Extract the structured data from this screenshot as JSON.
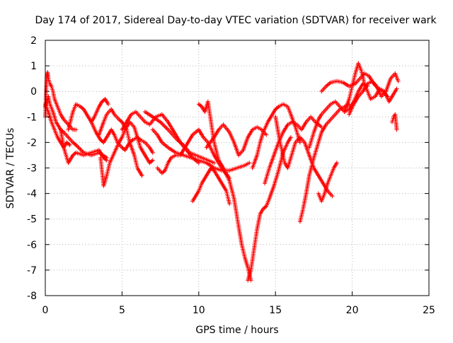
{
  "chart_data": {
    "type": "scatter",
    "title": "Day 174 of 2017, Sidereal Day-to-day VTEC variation (SDTVAR) for receiver wark",
    "xlabel": "GPS time / hours",
    "ylabel": "SDTVAR / TECUs",
    "xlim": [
      0,
      25
    ],
    "ylim": [
      -8,
      2
    ],
    "x_ticks": [
      "0",
      "5",
      "10",
      "15",
      "20",
      "25"
    ],
    "y_ticks": [
      "2",
      "1",
      "0",
      "-1",
      "-2",
      "-3",
      "-4",
      "-5",
      "-6",
      "-7",
      "-8"
    ],
    "grid": true,
    "marker": "plus",
    "color": "#ff0000",
    "series": [
      {
        "x": [
          0,
          0.2,
          0.4,
          0.6,
          0.8,
          1.0,
          1.2,
          1.4,
          1.6
        ],
        "y": [
          -0.5,
          -0.8,
          -1.2,
          -1.5,
          -1.8,
          -2.0,
          -2.2,
          -2.0,
          -2.1
        ]
      },
      {
        "x": [
          0,
          0.05,
          0.1,
          0.15,
          0.2,
          0.3,
          0.4,
          0.5,
          0.6,
          0.8,
          1.0,
          1.2,
          1.5,
          1.8,
          2.0
        ],
        "y": [
          -1.0,
          0.0,
          0.6,
          0.75,
          0.5,
          0.3,
          0.2,
          0.0,
          -0.3,
          -0.6,
          -0.9,
          -1.1,
          -1.3,
          -1.5,
          -1.5
        ]
      },
      {
        "x": [
          0,
          0.1,
          0.2,
          0.3,
          0.5,
          0.7,
          1.0,
          1.2,
          1.5,
          1.8,
          2.0,
          2.5,
          3.0,
          3.5,
          4.0
        ],
        "y": [
          -0.6,
          -0.4,
          -0.2,
          -0.5,
          -0.8,
          -1.2,
          -1.5,
          -1.6,
          -1.8,
          -2.0,
          -2.1,
          -2.4,
          -2.5,
          -2.4,
          -2.6
        ]
      },
      {
        "x": [
          1.0,
          1.2,
          1.5,
          1.8,
          2.0,
          2.5,
          3.0,
          3.5,
          3.8,
          4.0
        ],
        "y": [
          -1.5,
          -2.2,
          -2.8,
          -2.5,
          -2.4,
          -2.5,
          -2.4,
          -2.3,
          -2.6,
          -2.7
        ]
      },
      {
        "x": [
          1.5,
          1.8,
          2.0,
          2.3,
          2.5,
          3.0,
          3.2,
          3.5,
          3.7,
          3.9,
          4.1
        ],
        "y": [
          -1.5,
          -0.8,
          -0.5,
          -0.6,
          -0.7,
          -1.2,
          -1.0,
          -0.6,
          -0.4,
          -0.3,
          -0.5
        ]
      },
      {
        "x": [
          3.0,
          3.3,
          3.6,
          3.8,
          4.0,
          4.3,
          4.5,
          4.7,
          5.0,
          5.2,
          5.5,
          5.7,
          6.0,
          6.2,
          6.5,
          6.8,
          7.0
        ],
        "y": [
          -1.2,
          -1.6,
          -1.9,
          -2.0,
          -1.8,
          -1.5,
          -1.7,
          -2.0,
          -2.2,
          -2.3,
          -2.0,
          -1.9,
          -1.8,
          -1.9,
          -2.0,
          -2.2,
          -2.4
        ]
      },
      {
        "x": [
          3.6,
          3.8,
          4.0,
          4.2,
          4.5,
          4.8,
          5.0,
          5.2,
          5.5,
          5.8,
          6.0,
          6.2,
          6.5,
          6.8,
          7.0
        ],
        "y": [
          -2.6,
          -3.7,
          -3.3,
          -2.8,
          -2.4,
          -2.0,
          -1.8,
          -1.5,
          -1.2,
          -1.4,
          -1.8,
          -2.2,
          -2.5,
          -2.8,
          -2.7
        ]
      },
      {
        "x": [
          3.5,
          3.8,
          4.0,
          4.3,
          4.5,
          4.8,
          5.0,
          5.3,
          5.5,
          5.8,
          6.0,
          6.3
        ],
        "y": [
          -1.7,
          -1.2,
          -0.9,
          -0.7,
          -0.9,
          -1.1,
          -1.2,
          -1.5,
          -2.0,
          -2.5,
          -3.0,
          -3.3
        ]
      },
      {
        "x": [
          5.0,
          5.3,
          5.6,
          5.9,
          6.2,
          6.5,
          6.8,
          7.2,
          7.6,
          8.0,
          8.4,
          8.8,
          9.2,
          9.6,
          10.0
        ],
        "y": [
          -1.5,
          -1.2,
          -0.9,
          -0.8,
          -1.0,
          -1.2,
          -1.3,
          -1.0,
          -0.9,
          -1.2,
          -1.6,
          -2.0,
          -2.3,
          -2.6,
          -2.8
        ]
      },
      {
        "x": [
          6.5,
          7.0,
          7.5,
          8.0,
          8.3,
          8.6,
          9.0,
          9.4,
          9.8,
          10.2,
          10.6,
          11.0
        ],
        "y": [
          -0.8,
          -1.0,
          -1.2,
          -1.5,
          -1.7,
          -1.9,
          -2.1,
          -2.4,
          -2.5,
          -2.6,
          -2.7,
          -2.8
        ]
      },
      {
        "x": [
          7.0,
          7.3,
          7.6,
          8.0,
          8.5,
          9.0,
          9.5,
          10.0,
          10.5,
          11.0,
          11.5,
          12.0,
          12.5,
          13.0,
          13.3
        ],
        "y": [
          -1.5,
          -1.7,
          -2.0,
          -2.2,
          -2.4,
          -2.5,
          -2.6,
          -2.7,
          -2.8,
          -3.0,
          -3.1,
          -3.1,
          -3.0,
          -2.9,
          -2.8
        ]
      },
      {
        "x": [
          7.3,
          7.6,
          7.8,
          8.0,
          8.2,
          8.5,
          8.8,
          9.0,
          9.3,
          9.6,
          10.0,
          10.3,
          10.6,
          11.0,
          11.5,
          12.0
        ],
        "y": [
          -3.0,
          -3.2,
          -3.1,
          -2.8,
          -2.6,
          -2.5,
          -2.5,
          -2.3,
          -2.0,
          -1.7,
          -1.5,
          -1.8,
          -2.0,
          -2.5,
          -3.0,
          -3.4
        ]
      },
      {
        "x": [
          9.6,
          9.8,
          10.0,
          10.2,
          10.4,
          10.6,
          10.8,
          11.0,
          11.2,
          11.5,
          11.8,
          12.0
        ],
        "y": [
          -4.3,
          -4.1,
          -3.9,
          -3.6,
          -3.4,
          -3.2,
          -3.0,
          -3.1,
          -3.3,
          -3.6,
          -3.9,
          -4.4
        ]
      },
      {
        "x": [
          10.0,
          10.2,
          10.4,
          10.6,
          10.8,
          11.0,
          11.3,
          11.6,
          12.0,
          12.3,
          12.6,
          12.8,
          13.0,
          13.2,
          13.4
        ],
        "y": [
          -0.5,
          -0.6,
          -0.8,
          -0.4,
          -1.2,
          -2.0,
          -2.7,
          -3.0,
          -3.5,
          -4.2,
          -5.3,
          -6.0,
          -6.5,
          -6.9,
          -7.4
        ]
      },
      {
        "x": [
          10.5,
          11.0,
          11.3,
          11.6,
          12.0,
          12.3,
          12.6,
          12.9,
          13.2,
          13.5,
          13.8,
          14.1,
          14.4
        ],
        "y": [
          -2.2,
          -1.8,
          -1.5,
          -1.3,
          -1.6,
          -2.0,
          -2.5,
          -2.3,
          -1.8,
          -1.5,
          -1.4,
          -1.5,
          -1.7
        ]
      },
      {
        "x": [
          13.2,
          13.4,
          13.6,
          13.8,
          14.0,
          14.2,
          14.4,
          14.6,
          14.9,
          15.2,
          15.5,
          15.8,
          16.0
        ],
        "y": [
          -7.4,
          -7.0,
          -6.2,
          -5.4,
          -4.8,
          -4.6,
          -4.5,
          -4.2,
          -3.7,
          -3.1,
          -2.4,
          -2.0,
          -1.8
        ]
      },
      {
        "x": [
          13.5,
          13.8,
          14.0,
          14.2,
          14.5,
          14.8,
          15.0,
          15.2,
          15.5,
          15.8,
          16.0,
          16.3,
          16.6
        ],
        "y": [
          -3.0,
          -2.5,
          -2.0,
          -1.6,
          -1.2,
          -0.9,
          -0.7,
          -0.6,
          -0.5,
          -0.6,
          -0.9,
          -1.4,
          -2.0
        ]
      },
      {
        "x": [
          14.3,
          14.6,
          14.9,
          15.2,
          15.5,
          15.8,
          16.1,
          16.4,
          16.7,
          17.0,
          17.3,
          17.6,
          18.0
        ],
        "y": [
          -3.6,
          -3.0,
          -2.5,
          -2.0,
          -1.6,
          -1.3,
          -1.2,
          -1.3,
          -1.5,
          -1.2,
          -1.0,
          -1.2,
          -1.4
        ]
      },
      {
        "x": [
          15.0,
          15.3,
          15.6,
          15.8,
          16.0,
          16.3,
          16.6,
          16.9,
          17.2,
          17.5,
          17.8,
          18.1,
          18.4,
          18.7
        ],
        "y": [
          -1.0,
          -2.0,
          -2.8,
          -3.0,
          -2.6,
          -2.0,
          -1.8,
          -2.0,
          -2.5,
          -3.0,
          -3.3,
          -3.6,
          -3.9,
          -4.1
        ]
      },
      {
        "x": [
          16.6,
          16.8,
          17.0,
          17.2,
          17.5,
          17.8,
          18.0,
          18.3,
          18.6,
          18.9,
          19.2,
          19.5,
          19.8
        ],
        "y": [
          -5.1,
          -4.6,
          -4.0,
          -3.3,
          -2.6,
          -2.0,
          -1.6,
          -1.3,
          -1.1,
          -0.9,
          -0.7,
          -0.6,
          -0.5
        ]
      },
      {
        "x": [
          17.2,
          17.5,
          17.8,
          18.0,
          18.3,
          18.6,
          18.9,
          19.2,
          19.5,
          19.8,
          20.1,
          20.4,
          20.7,
          21.0
        ],
        "y": [
          -2.2,
          -1.6,
          -1.1,
          -0.9,
          -0.7,
          -0.5,
          -0.4,
          -0.6,
          -0.8,
          -0.7,
          -0.4,
          0.0,
          0.3,
          0.2
        ]
      },
      {
        "x": [
          17.8,
          18.0,
          18.2,
          18.4,
          18.6,
          18.8,
          19.0
        ],
        "y": [
          -4.0,
          -4.3,
          -4.0,
          -3.6,
          -3.3,
          -3.0,
          -2.8
        ]
      },
      {
        "x": [
          18.0,
          18.3,
          18.6,
          19.0,
          19.4,
          19.8,
          20.2,
          20.5,
          20.8,
          21.1,
          21.4,
          21.7,
          22.0,
          22.3
        ],
        "y": [
          0.0,
          0.2,
          0.35,
          0.4,
          0.35,
          0.2,
          0.3,
          0.5,
          0.7,
          0.6,
          0.3,
          0.1,
          0.0,
          -0.2
        ]
      },
      {
        "x": [
          19.5,
          19.8,
          20.0,
          20.2,
          20.4,
          20.6,
          20.8,
          21.0,
          21.2,
          21.5,
          21.8,
          22.1,
          22.4,
          22.7,
          22.9
        ],
        "y": [
          -0.8,
          -0.3,
          0.2,
          0.7,
          1.1,
          0.8,
          0.3,
          0.0,
          -0.3,
          -0.2,
          0.1,
          0.0,
          -0.4,
          -0.1,
          0.1
        ]
      },
      {
        "x": [
          19.8,
          20.1,
          20.4,
          20.7,
          21.0,
          21.3,
          21.6,
          21.9,
          22.2,
          22.5,
          22.8,
          23.0
        ],
        "y": [
          -0.9,
          -0.5,
          -0.2,
          0.0,
          0.3,
          0.4,
          0.2,
          -0.2,
          0.0,
          0.5,
          0.7,
          0.4
        ]
      },
      {
        "x": [
          22.6,
          22.7,
          22.8,
          22.9
        ],
        "y": [
          -1.2,
          -1.0,
          -0.9,
          -1.5
        ]
      }
    ]
  }
}
